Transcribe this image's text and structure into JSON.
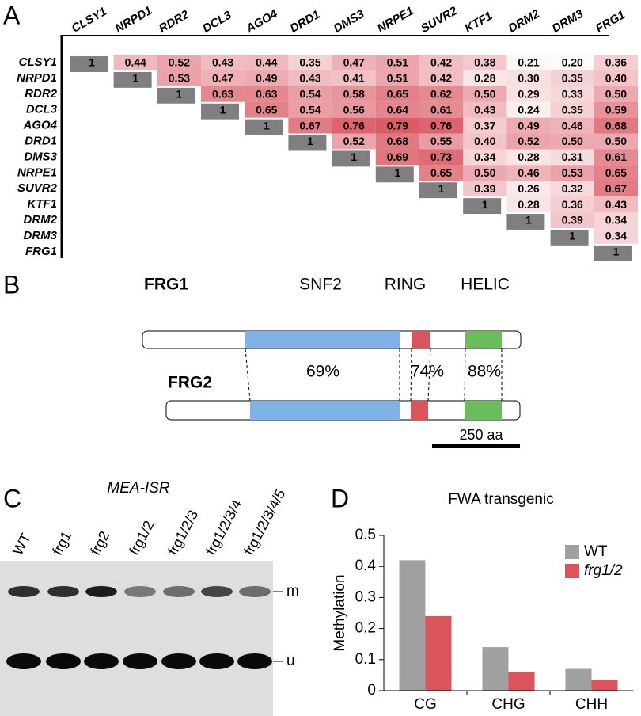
{
  "panel_labels": [
    "A",
    "B",
    "C",
    "D"
  ],
  "matrix": {
    "genes": [
      "CLSY1",
      "NRPD1",
      "RDR2",
      "DCL3",
      "AGO4",
      "DRD1",
      "DMS3",
      "NRPE1",
      "SUVR2",
      "KTF1",
      "DRM2",
      "DRM3",
      "FRG1"
    ],
    "rows": [
      [
        "1",
        "0.44",
        "0.52",
        "0.43",
        "0.44",
        "0.35",
        "0.47",
        "0.51",
        "0.42",
        "0.38",
        "0.21",
        "0.20",
        "0.36"
      ],
      [
        "1",
        "0.53",
        "0.47",
        "0.49",
        "0.43",
        "0.41",
        "0.51",
        "0.42",
        "0.28",
        "0.30",
        "0.35",
        "0.40"
      ],
      [
        "1",
        "0.63",
        "0.63",
        "0.54",
        "0.58",
        "0.65",
        "0.62",
        "0.50",
        "0.29",
        "0.33",
        "0.50"
      ],
      [
        "1",
        "0.65",
        "0.54",
        "0.56",
        "0.64",
        "0.61",
        "0.43",
        "0.24",
        "0.35",
        "0.59"
      ],
      [
        "1",
        "0.67",
        "0.76",
        "0.79",
        "0.76",
        "0.37",
        "0.49",
        "0.46",
        "0.68"
      ],
      [
        "1",
        "0.52",
        "0.68",
        "0.55",
        "0.40",
        "0.52",
        "0.50",
        "0.50"
      ],
      [
        "1",
        "0.69",
        "0.73",
        "0.34",
        "0.28",
        "0.31",
        "0.61"
      ],
      [
        "1",
        "0.65",
        "0.50",
        "0.46",
        "0.53",
        "0.65"
      ],
      [
        "1",
        "0.39",
        "0.26",
        "0.32",
        "0.67"
      ],
      [
        "1",
        "0.28",
        "0.36",
        "0.43"
      ],
      [
        "1",
        "0.39",
        "0.34"
      ],
      [
        "1",
        "0.34"
      ],
      [
        "1"
      ]
    ]
  },
  "domains": {
    "proteins": [
      "FRG1",
      "FRG2"
    ],
    "names": [
      "SNF2",
      "RING",
      "HELIC"
    ],
    "identity": [
      "69%",
      "74%",
      "88%"
    ],
    "scale": "250 aa"
  },
  "gel": {
    "title": "MEA-ISR",
    "lanes": [
      "WT",
      "frg1",
      "frg2",
      "frg1/2",
      "frg1/2/3",
      "frg1/2/3/4",
      "frg1/2/3/4/5"
    ],
    "bands": [
      "m",
      "u"
    ]
  },
  "chart_data": {
    "type": "bar",
    "title": "FWA transgenic",
    "y_label": "Methylation",
    "categories": [
      "CG",
      "CHG",
      "CHH"
    ],
    "series": [
      {
        "name": "WT",
        "color": "#a0a0a0",
        "values": [
          0.42,
          0.14,
          0.07
        ]
      },
      {
        "name": "frg1/2",
        "color": "#d9545b",
        "values": [
          0.24,
          0.06,
          0.035
        ]
      }
    ],
    "ylim": [
      0,
      0.5
    ],
    "yticks": [
      0,
      0.1,
      0.2,
      0.3,
      0.4,
      0.5
    ],
    "grid": false,
    "legend": "top-right"
  }
}
